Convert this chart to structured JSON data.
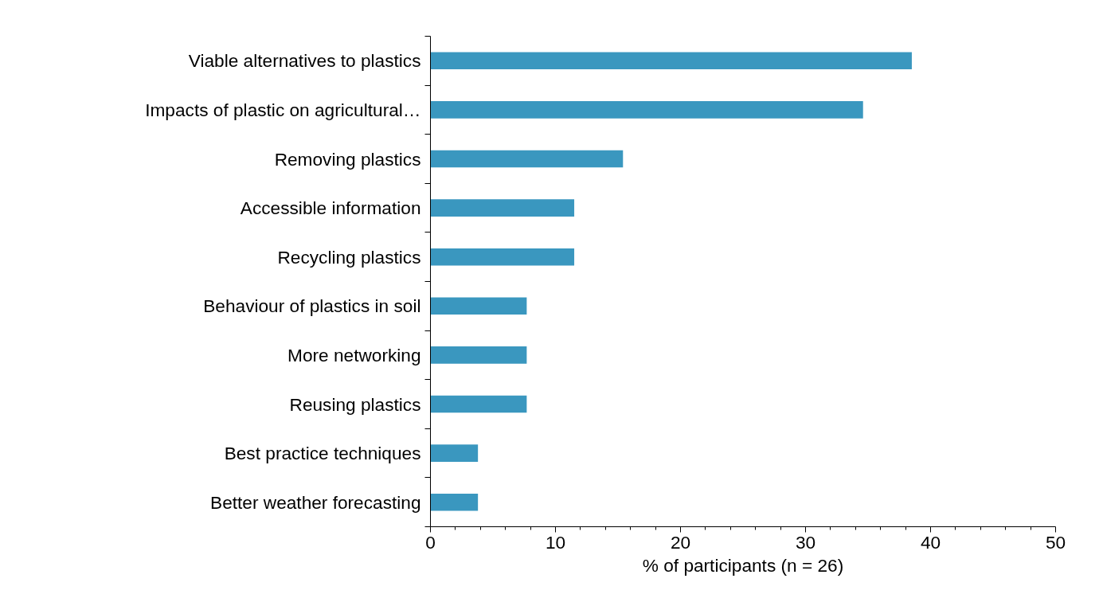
{
  "chart_data": {
    "type": "bar",
    "orientation": "horizontal",
    "xlabel": "% of participants (n = 26)",
    "categories": [
      "Viable alternatives to plastics",
      "Impacts of plastic on agricultural…",
      "Removing plastics",
      "Accessible information",
      "Recycling plastics",
      "Behaviour of plastics in soil",
      "More networking",
      "Reusing plastics",
      "Best practice techniques",
      "Better weather forecasting"
    ],
    "values": [
      38.5,
      34.6,
      15.4,
      11.5,
      11.5,
      7.7,
      7.7,
      7.7,
      3.8,
      3.8
    ],
    "color": "#3a97bf",
    "xlim": [
      0,
      50
    ],
    "xticks": [
      0,
      10,
      20,
      30,
      40,
      50
    ],
    "grid": false
  }
}
